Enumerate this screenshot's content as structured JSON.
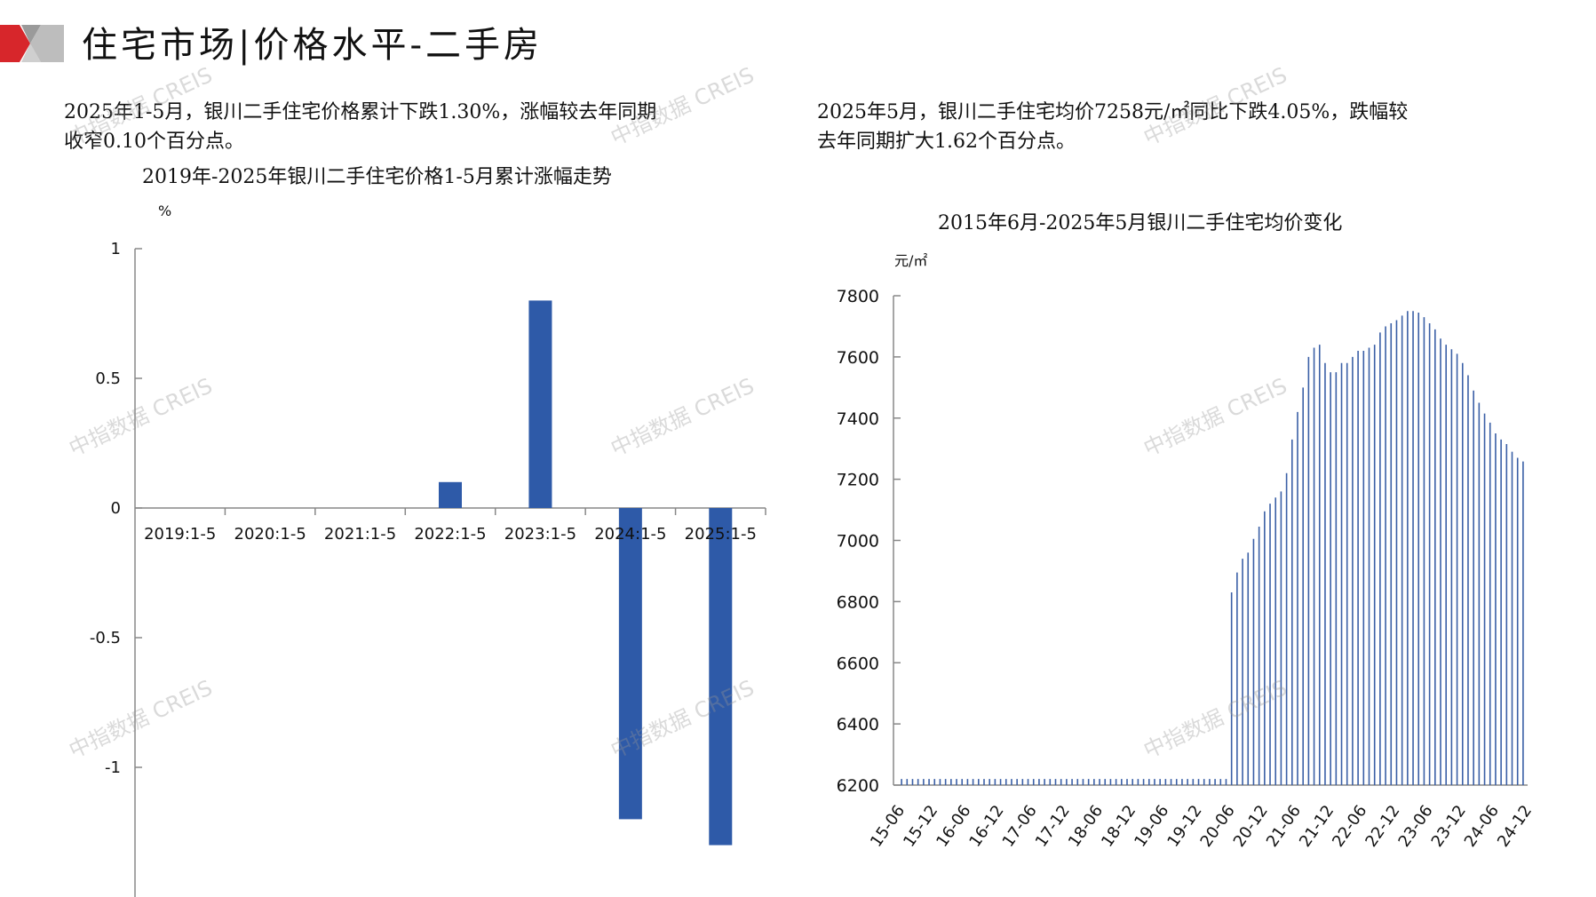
{
  "header": {
    "title": "住宅市场|价格水平-二手房"
  },
  "left_panel": {
    "note_line1": "2025年1-5月，银川二手住宅价格累计下跌1.30%，涨幅较去年同期",
    "note_line2": "收窄0.10个百分点。",
    "chart_title": "2019年-2025年银川二手住宅价格1-5月累计涨幅走势",
    "unit": "%"
  },
  "right_panel": {
    "note_line1": "2025年5月，银川二手住宅均价7258元/㎡同比下跌4.05%，跌幅较",
    "note_line2": "去年同期扩大1.62个百分点。",
    "chart_title": "2015年6月-2025年5月银川二手住宅均价变化",
    "unit": "元/㎡"
  },
  "watermarks": [
    "中指数据 CREIS"
  ],
  "colors": {
    "bar": "#2e5aa8",
    "line": "#3a5fa6",
    "axis": "#888888",
    "logo_red": "#d7262b",
    "logo_gray": "#bdbdbd"
  },
  "chart_data": [
    {
      "type": "bar",
      "categories": [
        "2019:1-5",
        "2020:1-5",
        "2021:1-5",
        "2022:1-5",
        "2023:1-5",
        "2024:1-5",
        "2025:1-5"
      ],
      "values": [
        0,
        0,
        0,
        0.1,
        0.8,
        -1.2,
        -1.3
      ],
      "title": "2019年-2025年银川二手住宅价格1-5月累计涨幅走势",
      "ylabel": "%",
      "yticks": [
        "1",
        "0.5",
        "0",
        "-0.5",
        "-1"
      ],
      "ylim": [
        -1.5,
        1
      ],
      "grid": false
    },
    {
      "type": "bar",
      "title": "2015年6月-2025年5月银川二手住宅均价变化",
      "ylabel": "元/㎡",
      "ylim": [
        6200,
        7800
      ],
      "yticks": [
        "7800",
        "7600",
        "7400",
        "7200",
        "7000",
        "6800",
        "6600",
        "6400",
        "6200"
      ],
      "x_tick_labels": [
        "15-06",
        "15-12",
        "16-06",
        "16-12",
        "17-06",
        "17-12",
        "18-06",
        "18-12",
        "19-06",
        "19-12",
        "20-06",
        "20-12",
        "21-06",
        "21-12",
        "22-06",
        "22-12",
        "23-06",
        "23-12",
        "24-06",
        "24-12"
      ],
      "x_start": "2015-06",
      "x_end": "2025-05",
      "values": [
        6220,
        6220,
        6220,
        6220,
        6220,
        6220,
        6220,
        6220,
        6220,
        6220,
        6220,
        6220,
        6220,
        6220,
        6220,
        6220,
        6220,
        6220,
        6220,
        6220,
        6220,
        6220,
        6220,
        6220,
        6220,
        6220,
        6220,
        6220,
        6220,
        6220,
        6220,
        6220,
        6220,
        6220,
        6220,
        6220,
        6220,
        6220,
        6220,
        6220,
        6220,
        6220,
        6220,
        6220,
        6220,
        6220,
        6220,
        6220,
        6220,
        6220,
        6220,
        6220,
        6220,
        6220,
        6220,
        6220,
        6220,
        6220,
        6220,
        6220,
        6830,
        6895,
        6940,
        6960,
        7005,
        7045,
        7095,
        7120,
        7140,
        7160,
        7220,
        7330,
        7420,
        7500,
        7600,
        7630,
        7640,
        7580,
        7550,
        7550,
        7580,
        7580,
        7600,
        7620,
        7620,
        7630,
        7640,
        7680,
        7700,
        7710,
        7720,
        7735,
        7750,
        7750,
        7745,
        7730,
        7710,
        7690,
        7660,
        7640,
        7625,
        7610,
        7580,
        7540,
        7490,
        7450,
        7415,
        7385,
        7350,
        7330,
        7315,
        7290,
        7270,
        7258
      ]
    }
  ]
}
